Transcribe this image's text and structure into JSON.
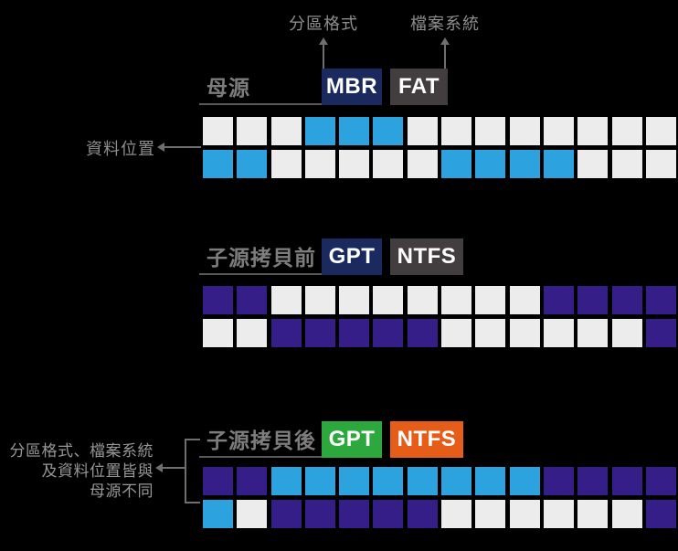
{
  "callouts": {
    "partition_format": "分區格式",
    "file_system": "檔案系統",
    "data_location": "資料位置",
    "difference_note": {
      "line1": "分區格式、檔案系統",
      "line2": "及資料位置皆與",
      "line3": "母源不同"
    }
  },
  "sections": [
    {
      "title": "母源",
      "partition_label": "MBR",
      "filesystem_label": "FAT",
      "rows": [
        [
          "E",
          "E",
          "E",
          "B",
          "B",
          "B",
          "E",
          "E",
          "E",
          "E",
          "E",
          "E",
          "E",
          "E"
        ],
        [
          "B",
          "B",
          "E",
          "E",
          "E",
          "E",
          "E",
          "B",
          "B",
          "B",
          "B",
          "E",
          "E",
          "E"
        ]
      ]
    },
    {
      "title": "子源拷貝前",
      "partition_label": "GPT",
      "filesystem_label": "NTFS",
      "rows": [
        [
          "P",
          "P",
          "E",
          "E",
          "E",
          "E",
          "E",
          "E",
          "E",
          "E",
          "P",
          "P",
          "P",
          "P"
        ],
        [
          "E",
          "E",
          "P",
          "P",
          "P",
          "P",
          "P",
          "E",
          "E",
          "E",
          "E",
          "E",
          "E",
          "P"
        ]
      ]
    },
    {
      "title": "子源拷貝後",
      "partition_label": "GPT",
      "filesystem_label": "NTFS",
      "rows": [
        [
          "P",
          "P",
          "B",
          "B",
          "B",
          "B",
          "B",
          "B",
          "B",
          "B",
          "P",
          "P",
          "P",
          "P"
        ],
        [
          "B",
          "E",
          "P",
          "P",
          "P",
          "P",
          "P",
          "E",
          "E",
          "E",
          "E",
          "E",
          "E",
          "P"
        ]
      ]
    }
  ],
  "cell_colors": {
    "E": "#ececec",
    "B": "#2ca3de",
    "P": "#361e88"
  },
  "colors": {
    "background": "#000000",
    "mbr_box": "#1b2a5e",
    "fat_box": "#423e3f",
    "gpt_before_box": "#1b2a5e",
    "ntfs_before_box": "#423e3f",
    "gpt_after_box": "#2ca83c",
    "ntfs_after_box": "#e65c19",
    "underline": "#58595b",
    "arrow_line": "#6f6f71",
    "label_text": "#8e8e8e",
    "title_text": "#7d7d7d"
  }
}
